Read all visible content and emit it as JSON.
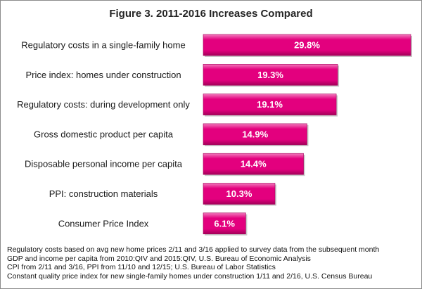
{
  "colors": {
    "bar": "#e3007e",
    "bar_top": "#f27bbd",
    "bar_dark": "#a4005a"
  },
  "chart_data": {
    "type": "bar",
    "orientation": "horizontal",
    "title": "Figure 3.  2011-2016 Increases Compared",
    "categories": [
      "Regulatory costs in a single-family home",
      "Price index: homes under construction",
      "Regulatory costs: during development only",
      "Gross domestic product per capita",
      "Disposable personal income per capita",
      "PPI: construction materials",
      "Consumer Price Index"
    ],
    "values": [
      29.8,
      19.3,
      19.1,
      14.9,
      14.4,
      10.3,
      6.1
    ],
    "value_labels": [
      "29.8%",
      "19.3%",
      "19.1%",
      "14.9%",
      "14.4%",
      "10.3%",
      "6.1%"
    ],
    "xlim": [
      0,
      30
    ],
    "grid": false,
    "legend": "none"
  },
  "notes": [
    "Regulatory costs based on avg new home prices 2/11 and 3/16 applied to survey data from the subsequent month",
    "GDP and income per capita from 2010:QIV and 2015:QIV, U.S. Bureau of Economic Analysis",
    "CPI from 2/11 and 3/16, PPI from 11/10 and 12/15; U.S. Bureau of Labor Statistics",
    "Constant quality price index for new single-family homes under construction 1/11 and 2/16, U.S.  Census Bureau"
  ]
}
